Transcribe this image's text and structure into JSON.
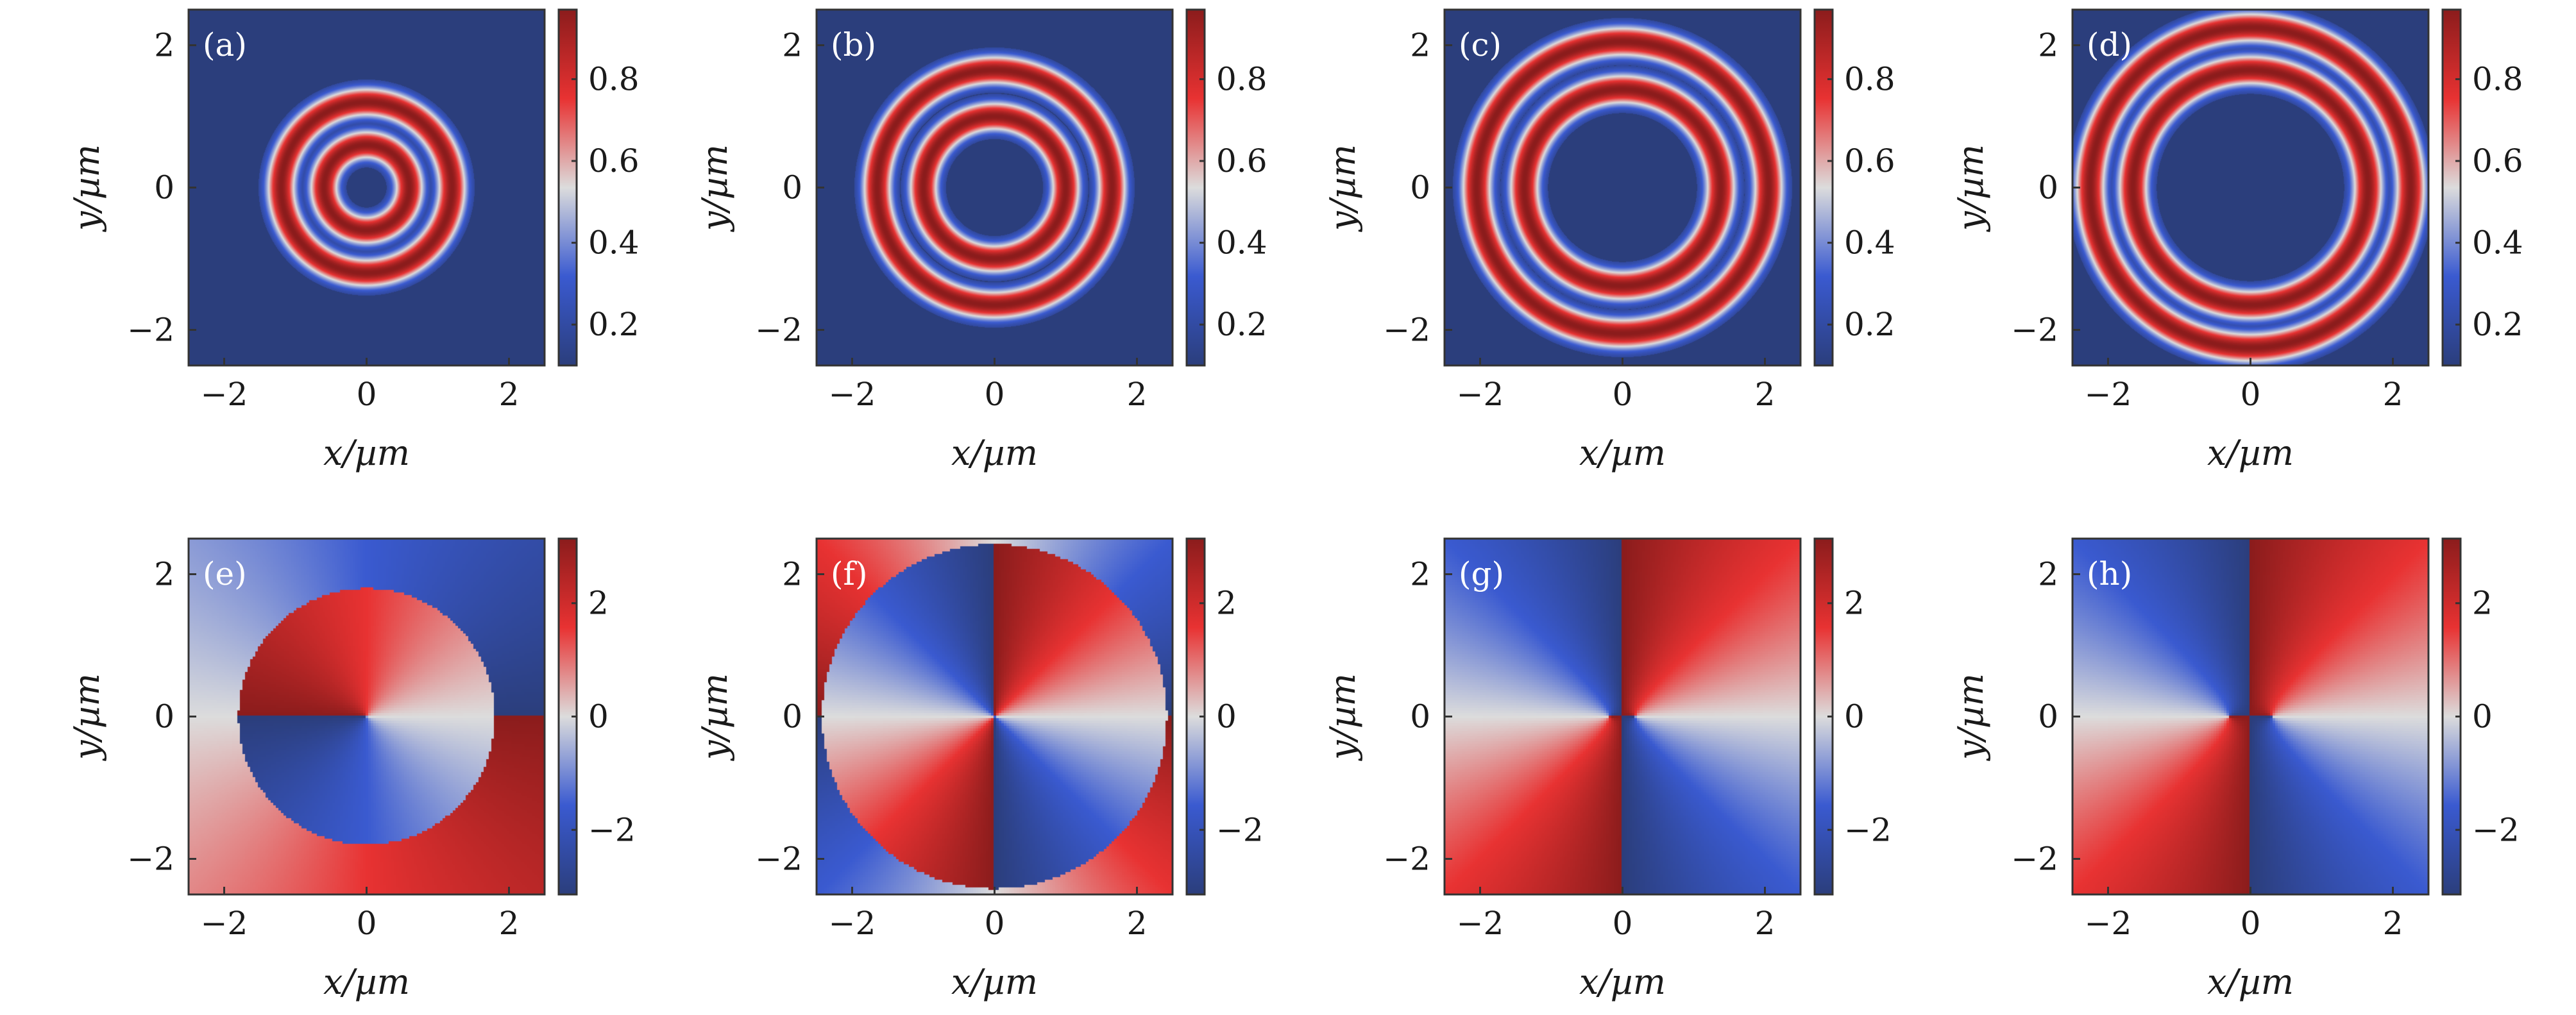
{
  "chart_data": [
    {
      "label": "(a)",
      "type": "heatmap",
      "map_kind": "rings",
      "ring_radii": [
        0.6,
        1.2
      ],
      "ring_halfwidth": 0.21,
      "xlim": [
        -2.5,
        2.5
      ],
      "ylim": [
        -2.5,
        2.5
      ],
      "x_ticks": [
        -2,
        0,
        2
      ],
      "y_ticks": [
        -2,
        0,
        2
      ],
      "xlabel": "x/µm",
      "ylabel": "y/µm",
      "colorbar_range": [
        0.1,
        0.97
      ],
      "colorbar_ticks": [
        0.2,
        0.4,
        0.6,
        0.8
      ],
      "colorbar_tick_labels": [
        "0.2",
        "0.4",
        "0.6",
        "0.8"
      ]
    },
    {
      "label": "(b)",
      "type": "heatmap",
      "map_kind": "rings",
      "ring_radii": [
        1.0,
        1.65
      ],
      "ring_halfwidth": 0.21,
      "xlim": [
        -2.5,
        2.5
      ],
      "ylim": [
        -2.5,
        2.5
      ],
      "x_ticks": [
        -2,
        0,
        2
      ],
      "y_ticks": [
        -2,
        0,
        2
      ],
      "xlabel": "x/µm",
      "ylabel": "y/µm",
      "colorbar_range": [
        0.1,
        0.97
      ],
      "colorbar_ticks": [
        0.2,
        0.4,
        0.6,
        0.8
      ],
      "colorbar_tick_labels": [
        "0.2",
        "0.4",
        "0.6",
        "0.8"
      ]
    },
    {
      "label": "(c)",
      "type": "heatmap",
      "map_kind": "rings",
      "ring_radii": [
        1.38,
        2.05
      ],
      "ring_halfwidth": 0.22,
      "xlim": [
        -2.5,
        2.5
      ],
      "ylim": [
        -2.5,
        2.5
      ],
      "x_ticks": [
        -2,
        0,
        2
      ],
      "y_ticks": [
        -2,
        0,
        2
      ],
      "xlabel": "x/µm",
      "ylabel": "y/µm",
      "colorbar_range": [
        0.1,
        0.97
      ],
      "colorbar_ticks": [
        0.2,
        0.4,
        0.6,
        0.8
      ],
      "colorbar_tick_labels": [
        "0.2",
        "0.4",
        "0.6",
        "0.8"
      ]
    },
    {
      "label": "(d)",
      "type": "heatmap",
      "map_kind": "rings",
      "ring_radii": [
        1.65,
        2.25
      ],
      "ring_halfwidth": 0.22,
      "xlim": [
        -2.5,
        2.5
      ],
      "ylim": [
        -2.5,
        2.5
      ],
      "x_ticks": [
        -2,
        0,
        2
      ],
      "y_ticks": [
        -2,
        0,
        2
      ],
      "xlabel": "x/µm",
      "ylabel": "y/µm",
      "colorbar_range": [
        0.1,
        0.97
      ],
      "colorbar_ticks": [
        0.2,
        0.4,
        0.6,
        0.8
      ],
      "colorbar_tick_labels": [
        "0.2",
        "0.4",
        "0.6",
        "0.8"
      ]
    },
    {
      "label": "(e)",
      "type": "heatmap",
      "map_kind": "phase-disk",
      "inner_radius": 1.8,
      "inner_charge": 1,
      "outer_charge": 1,
      "outer_offset": 3.14,
      "xlim": [
        -2.5,
        2.5
      ],
      "ylim": [
        -2.5,
        2.5
      ],
      "x_ticks": [
        -2,
        0,
        2
      ],
      "y_ticks": [
        -2,
        0,
        2
      ],
      "xlabel": "x/µm",
      "ylabel": "y/µm",
      "colorbar_range": [
        -3.14,
        3.14
      ],
      "colorbar_ticks": [
        -2,
        0,
        2
      ],
      "colorbar_tick_labels": [
        "−2",
        "0",
        "2"
      ]
    },
    {
      "label": "(f)",
      "type": "heatmap",
      "map_kind": "phase-disk",
      "inner_radius": 2.42,
      "inner_charge": 2,
      "outer_charge": 2,
      "outer_offset": 3.14,
      "xlim": [
        -2.5,
        2.5
      ],
      "ylim": [
        -2.5,
        2.5
      ],
      "x_ticks": [
        -2,
        0,
        2
      ],
      "y_ticks": [
        -2,
        0,
        2
      ],
      "xlabel": "x/µm",
      "ylabel": "y/µm",
      "colorbar_range": [
        -3.14,
        3.14
      ],
      "colorbar_ticks": [
        -2,
        0,
        2
      ],
      "colorbar_tick_labels": [
        "−2",
        "0",
        "2"
      ]
    },
    {
      "label": "(g)",
      "type": "heatmap",
      "map_kind": "phase-split",
      "split_offset": 0.18,
      "xlim": [
        -2.5,
        2.5
      ],
      "ylim": [
        -2.5,
        2.5
      ],
      "x_ticks": [
        -2,
        0,
        2
      ],
      "y_ticks": [
        -2,
        0,
        2
      ],
      "xlabel": "x/µm",
      "ylabel": "y/µm",
      "colorbar_range": [
        -3.14,
        3.14
      ],
      "colorbar_ticks": [
        -2,
        0,
        2
      ],
      "colorbar_tick_labels": [
        "−2",
        "0",
        "2"
      ]
    },
    {
      "label": "(h)",
      "type": "heatmap",
      "map_kind": "phase-split",
      "split_offset": 0.3,
      "xlim": [
        -2.5,
        2.5
      ],
      "ylim": [
        -2.5,
        2.5
      ],
      "x_ticks": [
        -2,
        0,
        2
      ],
      "y_ticks": [
        -2,
        0,
        2
      ],
      "xlabel": "x/µm",
      "ylabel": "y/µm",
      "colorbar_range": [
        -3.14,
        3.14
      ],
      "colorbar_ticks": [
        -2,
        0,
        2
      ],
      "colorbar_tick_labels": [
        "−2",
        "0",
        "2"
      ]
    }
  ],
  "colormap": [
    "#2b3e7c",
    "#3a5ad0",
    "#dcdcdc",
    "#e83232",
    "#8b1c1c"
  ]
}
